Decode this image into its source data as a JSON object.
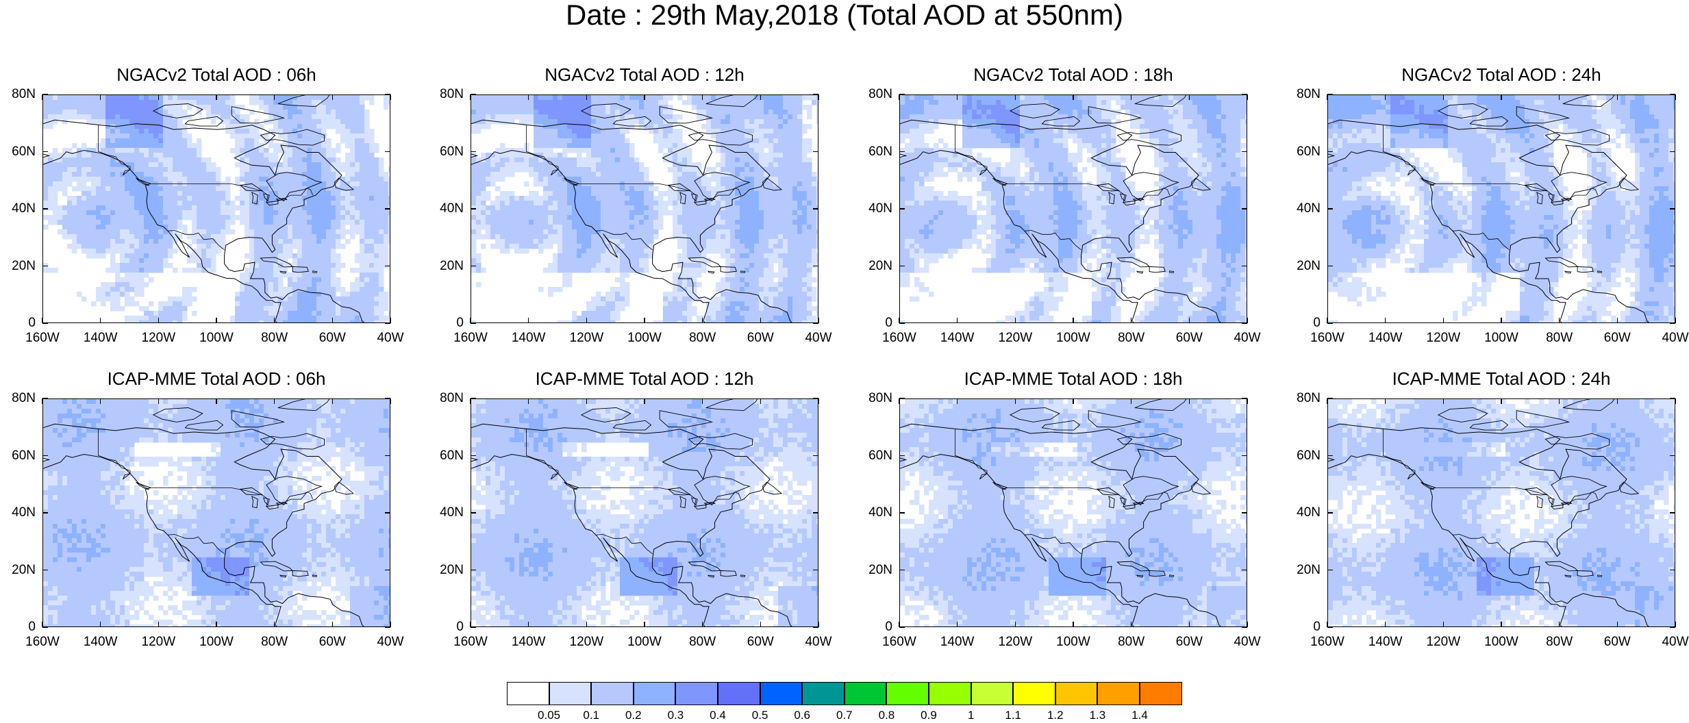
{
  "title": "Date : 29th May,2018 (Total AOD at 550nm)",
  "panels": [
    {
      "title": "NGACv2 Total AOD : 06h",
      "model": "NGACv2",
      "hour": "06h"
    },
    {
      "title": "NGACv2 Total AOD : 12h",
      "model": "NGACv2",
      "hour": "12h"
    },
    {
      "title": "NGACv2 Total AOD : 18h",
      "model": "NGACv2",
      "hour": "18h"
    },
    {
      "title": "NGACv2 Total AOD : 24h",
      "model": "NGACv2",
      "hour": "24h"
    },
    {
      "title": "ICAP-MME Total AOD : 06h",
      "model": "ICAP-MME",
      "hour": "06h"
    },
    {
      "title": "ICAP-MME Total AOD : 12h",
      "model": "ICAP-MME",
      "hour": "12h"
    },
    {
      "title": "ICAP-MME Total AOD : 18h",
      "model": "ICAP-MME",
      "hour": "18h"
    },
    {
      "title": "ICAP-MME Total AOD : 24h",
      "model": "ICAP-MME",
      "hour": "24h"
    }
  ],
  "axes": {
    "lat_labels": [
      "80N",
      "60N",
      "40N",
      "20N",
      "0"
    ],
    "lon_labels": [
      "160W",
      "140W",
      "120W",
      "100W",
      "80W",
      "60W",
      "40W"
    ]
  },
  "colorbar": {
    "labels": [
      "0.05",
      "0.1",
      "0.2",
      "0.3",
      "0.4",
      "0.5",
      "0.6",
      "0.7",
      "0.8",
      "0.9",
      "1",
      "1.1",
      "1.2",
      "1.3",
      "1.4"
    ],
    "colors": [
      "#ffffff",
      "#d6e2ff",
      "#b5c9ff",
      "#8eb2ff",
      "#7f96ff",
      "#6370f8",
      "#0063ff",
      "#009696",
      "#00c633",
      "#63ff00",
      "#96ff00",
      "#c6ff33",
      "#ffff00",
      "#ffc600",
      "#ffa000",
      "#ff7c00",
      "#ff1900"
    ]
  }
}
